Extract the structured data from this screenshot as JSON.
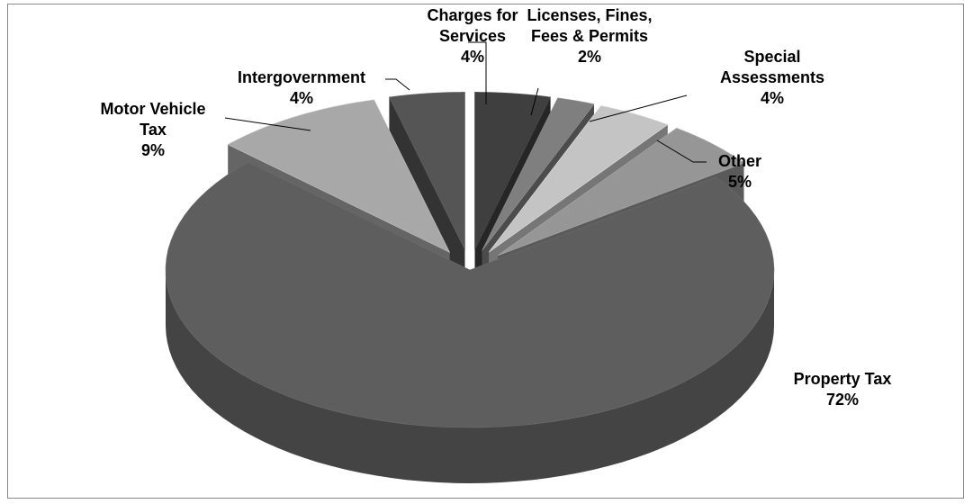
{
  "chart_data": {
    "type": "pie",
    "categories": [
      "Charges for Services",
      "Licenses, Fines, Fees & Permits",
      "Special Assessments",
      "Other",
      "Property Tax",
      "Motor Vehicle Tax",
      "Intergovernment"
    ],
    "values": [
      4,
      2,
      4,
      5,
      72,
      9,
      4
    ],
    "value_labels": [
      "4%",
      "2%",
      "4%",
      "5%",
      "72%",
      "9%",
      "4%"
    ],
    "colors": [
      "#3f3f3f",
      "#7f7f7f",
      "#c4c4c4",
      "#969696",
      "#5e5e5e",
      "#a8a8a8",
      "#555555"
    ]
  }
}
